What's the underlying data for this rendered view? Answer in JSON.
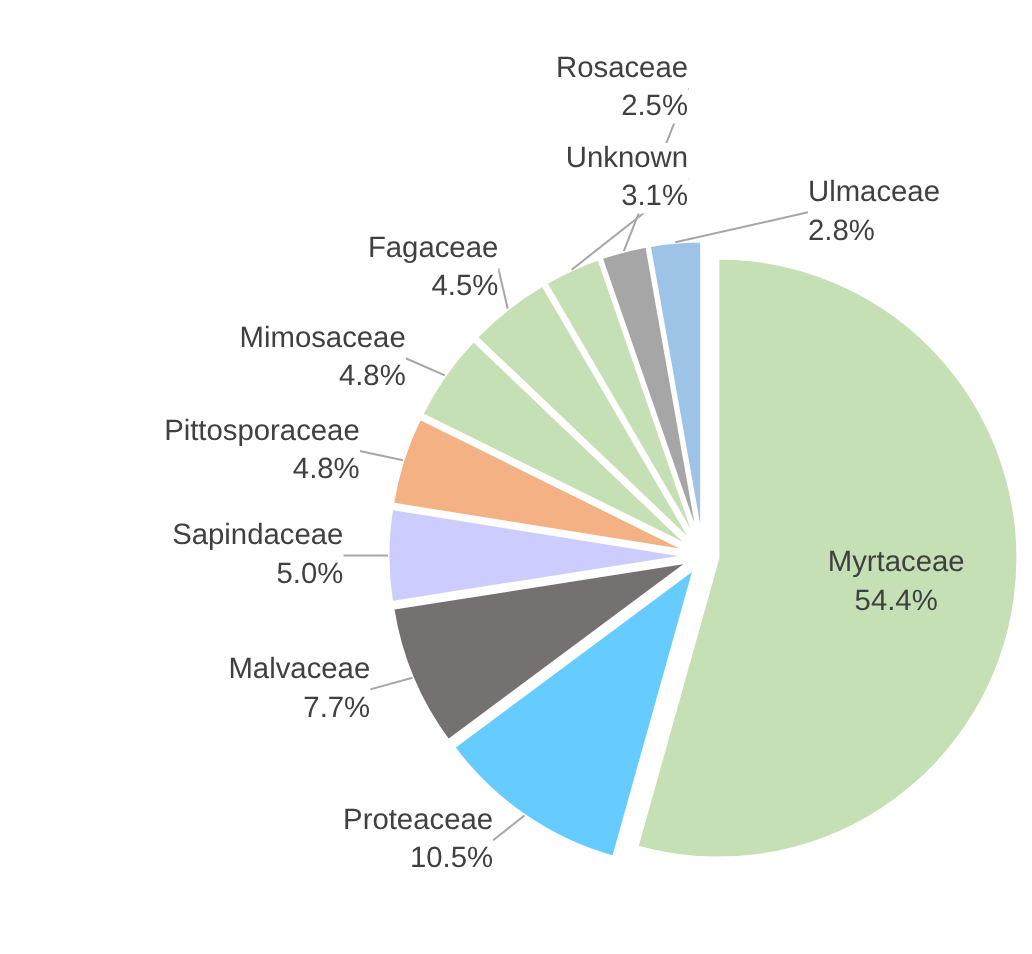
{
  "chart_data": {
    "type": "pie",
    "categories": [
      "Myrtaceae",
      "Proteaceae",
      "Malvaceae",
      "Sapindaceae",
      "Pittosporaceae",
      "Mimosaceae",
      "Fagaceae",
      "Unknown",
      "Rosaceae",
      "Ulmaceae"
    ],
    "values": [
      54.4,
      10.5,
      7.7,
      5.0,
      4.8,
      4.8,
      4.5,
      3.1,
      2.5,
      2.8
    ],
    "colors": [
      "#c5e0b4",
      "#66ccff",
      "#767171",
      "#ccccff",
      "#f4b183",
      "#c5e0b4",
      "#c5e0b4",
      "#c5e0b4",
      "#a6a6a6",
      "#9dc3e6"
    ],
    "value_labels": [
      "54.4%",
      "10.5%",
      "7.7%",
      "5.0%",
      "4.8%",
      "4.8%",
      "4.5%",
      "3.1%",
      "2.5%",
      "2.8%"
    ]
  }
}
